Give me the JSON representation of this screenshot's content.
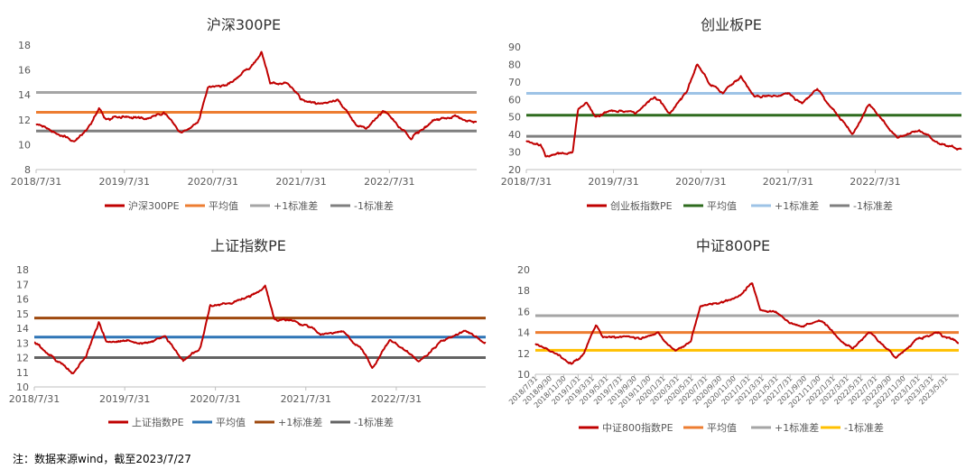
{
  "footnote": "注：数据来源wind，截至2023/7/27",
  "chart_data": [
    {
      "type": "line",
      "title": "沪深300PE",
      "y_ticks": [
        "8",
        "10",
        "12",
        "14",
        "16",
        "18"
      ],
      "ylim": [
        8,
        18
      ],
      "x_ticks": [
        "2018/7/31",
        "2019/7/31",
        "2020/7/31",
        "2021/7/31",
        "2022/7/31"
      ],
      "x_range": [
        "2018/7/31",
        "2023/7/27"
      ],
      "series": [
        {
          "name": "沪深300PE",
          "color": "#c00000",
          "points": [
            [
              "2018/7/31",
              11.7
            ],
            [
              "2018/10/15",
              11.0
            ],
            [
              "2019/1/3",
              10.2
            ],
            [
              "2019/2/25",
              11.2
            ],
            [
              "2019/4/18",
              12.9
            ],
            [
              "2019/5/15",
              12.0
            ],
            [
              "2019/7/31",
              12.3
            ],
            [
              "2019/10/31",
              12.0
            ],
            [
              "2020/1/10",
              12.6
            ],
            [
              "2020/3/23",
              10.9
            ],
            [
              "2020/5/31",
              11.8
            ],
            [
              "2020/7/10",
              14.6
            ],
            [
              "2020/9/30",
              14.8
            ],
            [
              "2020/12/31",
              16.2
            ],
            [
              "2021/2/18",
              17.4
            ],
            [
              "2021/3/25",
              14.9
            ],
            [
              "2021/5/31",
              15.0
            ],
            [
              "2021/7/31",
              13.7
            ],
            [
              "2021/9/30",
              13.2
            ],
            [
              "2021/12/31",
              13.6
            ],
            [
              "2022/3/15",
              11.6
            ],
            [
              "2022/4/26",
              11.3
            ],
            [
              "2022/7/5",
              12.7
            ],
            [
              "2022/10/31",
              10.5
            ],
            [
              "2023/1/31",
              12.0
            ],
            [
              "2023/4/30",
              12.3
            ],
            [
              "2023/7/27",
              11.7
            ]
          ]
        },
        {
          "name": "平均值",
          "color": "#ed7d31",
          "constant": 12.6
        },
        {
          "name": "+1标准差",
          "color": "#a5a5a5",
          "constant": 14.2
        },
        {
          "name": "-1标准差",
          "color": "#7f7f7f",
          "constant": 11.1
        }
      ]
    },
    {
      "type": "line",
      "title": "创业板PE",
      "y_ticks": [
        "20",
        "30",
        "40",
        "50",
        "60",
        "70",
        "80",
        "90"
      ],
      "ylim": [
        20,
        90
      ],
      "x_ticks": [
        "2018/7/31",
        "2019/7/31",
        "2020/7/31",
        "2021/7/31",
        "2022/7/31"
      ],
      "x_range": [
        "2018/7/31",
        "2023/7/27"
      ],
      "series": [
        {
          "name": "创业板指数PE",
          "color": "#c00000",
          "points": [
            [
              "2018/7/31",
              36
            ],
            [
              "2018/9/30",
              34
            ],
            [
              "2018/10/20",
              28
            ],
            [
              "2018/12/31",
              29
            ],
            [
              "2019/2/10",
              30
            ],
            [
              "2019/3/5",
              54
            ],
            [
              "2019/4/10",
              58
            ],
            [
              "2019/5/20",
              50
            ],
            [
              "2019/7/31",
              54
            ],
            [
              "2019/10/31",
              52
            ],
            [
              "2020/1/20",
              62
            ],
            [
              "2020/3/23",
              52
            ],
            [
              "2020/5/31",
              64
            ],
            [
              "2020/7/15",
              80
            ],
            [
              "2020/8/31",
              70
            ],
            [
              "2020/10/31",
              64
            ],
            [
              "2021/1/15",
              73
            ],
            [
              "2021/3/10",
              62
            ],
            [
              "2021/5/31",
              62
            ],
            [
              "2021/7/31",
              63
            ],
            [
              "2021/9/30",
              58
            ],
            [
              "2021/11/30",
              66
            ],
            [
              "2021/12/31",
              60
            ],
            [
              "2022/3/15",
              48
            ],
            [
              "2022/4/26",
              40
            ],
            [
              "2022/7/5",
              57
            ],
            [
              "2022/10/31",
              38
            ],
            [
              "2023/1/31",
              43
            ],
            [
              "2023/4/30",
              34
            ],
            [
              "2023/7/27",
              32
            ]
          ]
        },
        {
          "name": "平均值",
          "color": "#2e6b1e",
          "constant": 51
        },
        {
          "name": "+1标准差",
          "color": "#9dc3e6",
          "constant": 63.5
        },
        {
          "name": "-1标准差",
          "color": "#7f7f7f",
          "constant": 39
        }
      ]
    },
    {
      "type": "line",
      "title": "上证指数PE",
      "y_ticks": [
        "10",
        "11",
        "12",
        "13",
        "14",
        "15",
        "16",
        "17",
        "18"
      ],
      "ylim": [
        10,
        18
      ],
      "x_ticks": [
        "2018/7/31",
        "2019/7/31",
        "2020/7/31",
        "2021/7/31",
        "2022/7/31"
      ],
      "x_range": [
        "2018/7/31",
        "2023/7/27"
      ],
      "series": [
        {
          "name": "上证指数PE",
          "color": "#c00000",
          "points": [
            [
              "2018/7/31",
              13.0
            ],
            [
              "2018/10/31",
              11.8
            ],
            [
              "2019/1/3",
              10.9
            ],
            [
              "2019/2/25",
              12.1
            ],
            [
              "2019/4/18",
              14.5
            ],
            [
              "2019/5/15",
              13.1
            ],
            [
              "2019/7/31",
              13.1
            ],
            [
              "2019/10/31",
              13.0
            ],
            [
              "2020/1/10",
              13.4
            ],
            [
              "2020/3/23",
              11.8
            ],
            [
              "2020/5/31",
              12.7
            ],
            [
              "2020/7/10",
              15.5
            ],
            [
              "2020/9/30",
              15.7
            ],
            [
              "2020/12/31",
              16.3
            ],
            [
              "2021/2/18",
              16.9
            ],
            [
              "2021/3/25",
              14.6
            ],
            [
              "2021/5/31",
              14.5
            ],
            [
              "2021/7/31",
              14.2
            ],
            [
              "2021/9/30",
              13.6
            ],
            [
              "2021/12/31",
              13.7
            ],
            [
              "2022/3/15",
              12.5
            ],
            [
              "2022/4/26",
              11.3
            ],
            [
              "2022/7/5",
              13.2
            ],
            [
              "2022/10/31",
              11.8
            ],
            [
              "2023/1/31",
              13.1
            ],
            [
              "2023/4/30",
              13.9
            ],
            [
              "2023/7/27",
              13.0
            ]
          ]
        },
        {
          "name": "平均值",
          "color": "#2e75b6",
          "constant": 13.4
        },
        {
          "name": "+1标准差",
          "color": "#9e480e",
          "constant": 14.7
        },
        {
          "name": "-1标准差",
          "color": "#636363",
          "constant": 12.0
        }
      ]
    },
    {
      "type": "line",
      "title": "中证800PE",
      "y_ticks": [
        "10",
        "12",
        "14",
        "16",
        "18",
        "20"
      ],
      "ylim": [
        10,
        20
      ],
      "x_ticks": [
        "2018/7/31",
        "2018/9/30",
        "2018/11/30",
        "2019/1/31",
        "2019/3/31",
        "2019/5/31",
        "2019/7/31",
        "2019/9/30",
        "2019/11/30",
        "2020/1/31",
        "2020/3/31",
        "2020/5/31",
        "2020/7/31",
        "2020/9/30",
        "2020/11/30",
        "2021/1/31",
        "2021/3/31",
        "2021/5/31",
        "2021/7/31",
        "2021/9/30",
        "2021/11/30",
        "2022/1/31",
        "2022/3/31",
        "2022/5/31",
        "2022/7/31",
        "2022/9/30",
        "2022/11/30",
        "2023/1/31",
        "2023/3/31",
        "2023/5/31"
      ],
      "x_range": [
        "2018/7/31",
        "2023/7/27"
      ],
      "series": [
        {
          "name": "中证800指数PE",
          "color": "#c00000",
          "points": [
            [
              "2018/7/31",
              12.9
            ],
            [
              "2018/10/31",
              11.9
            ],
            [
              "2019/1/3",
              11.0
            ],
            [
              "2019/2/25",
              12.0
            ],
            [
              "2019/4/18",
              14.8
            ],
            [
              "2019/5/15",
              13.5
            ],
            [
              "2019/7/31",
              13.6
            ],
            [
              "2019/10/31",
              13.4
            ],
            [
              "2020/1/10",
              13.9
            ],
            [
              "2020/3/23",
              12.2
            ],
            [
              "2020/5/31",
              13.2
            ],
            [
              "2020/7/10",
              16.5
            ],
            [
              "2020/9/30",
              16.8
            ],
            [
              "2020/12/31",
              17.6
            ],
            [
              "2021/2/18",
              18.7
            ],
            [
              "2021/3/25",
              16.2
            ],
            [
              "2021/5/31",
              16.0
            ],
            [
              "2021/7/31",
              14.9
            ],
            [
              "2021/9/30",
              14.6
            ],
            [
              "2021/11/30",
              15.2
            ],
            [
              "2021/12/31",
              14.8
            ],
            [
              "2022/3/15",
              13.1
            ],
            [
              "2022/4/26",
              12.4
            ],
            [
              "2022/7/5",
              14.1
            ],
            [
              "2022/10/31",
              11.6
            ],
            [
              "2023/1/31",
              13.4
            ],
            [
              "2023/4/30",
              13.9
            ],
            [
              "2023/7/27",
              13.0
            ]
          ]
        },
        {
          "name": "平均值",
          "color": "#ed7d31",
          "constant": 14.0
        },
        {
          "name": "+1标准差",
          "color": "#a5a5a5",
          "constant": 15.6
        },
        {
          "name": "-1标准差",
          "color": "#ffc000",
          "constant": 12.3
        }
      ]
    }
  ]
}
